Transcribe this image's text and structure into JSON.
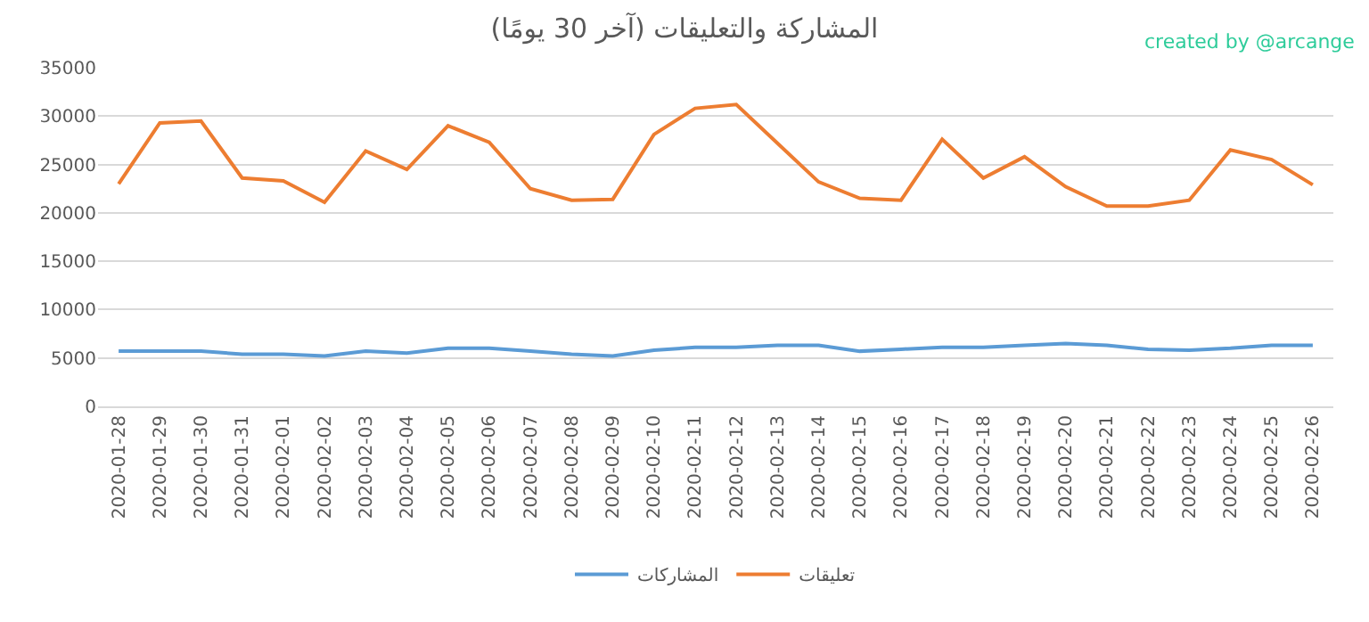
{
  "chart_data": {
    "type": "line",
    "title": "المشاركة والتعليقات (آخر 30 يومًا)",
    "annotations": [
      "created by @arcange"
    ],
    "categories": [
      "2020-01-28",
      "2020-01-29",
      "2020-01-30",
      "2020-01-31",
      "2020-02-01",
      "2020-02-02",
      "2020-02-03",
      "2020-02-04",
      "2020-02-05",
      "2020-02-06",
      "2020-02-07",
      "2020-02-08",
      "2020-02-09",
      "2020-02-10",
      "2020-02-11",
      "2020-02-12",
      "2020-02-13",
      "2020-02-14",
      "2020-02-15",
      "2020-02-16",
      "2020-02-17",
      "2020-02-18",
      "2020-02-19",
      "2020-02-20",
      "2020-02-21",
      "2020-02-22",
      "2020-02-23",
      "2020-02-24",
      "2020-02-25",
      "2020-02-26"
    ],
    "series": [
      {
        "name": "المشاركات",
        "color": "#5b9bd5",
        "values": [
          5700,
          5700,
          5700,
          5400,
          5400,
          5200,
          5700,
          5500,
          6000,
          6000,
          5700,
          5400,
          5200,
          5800,
          6100,
          6100,
          6300,
          6300,
          5700,
          5900,
          6100,
          6100,
          6300,
          6500,
          6300,
          5900,
          5800,
          6000,
          6300,
          6300
        ]
      },
      {
        "name": "تعليقات",
        "color": "#ed7d31",
        "values": [
          23000,
          29300,
          29500,
          23600,
          23300,
          21100,
          26400,
          24500,
          29000,
          27300,
          22500,
          21300,
          21400,
          28100,
          30800,
          31200,
          27200,
          23200,
          21500,
          21300,
          27600,
          23600,
          25800,
          22700,
          20700,
          20700,
          21300,
          26500,
          25500,
          22900
        ]
      }
    ],
    "ylim": [
      0,
      35000
    ],
    "yticks": [
      0,
      5000,
      10000,
      15000,
      20000,
      25000,
      30000,
      35000
    ],
    "grid": "y",
    "legend": "bottom",
    "marker": "none",
    "line_style": "solid"
  }
}
